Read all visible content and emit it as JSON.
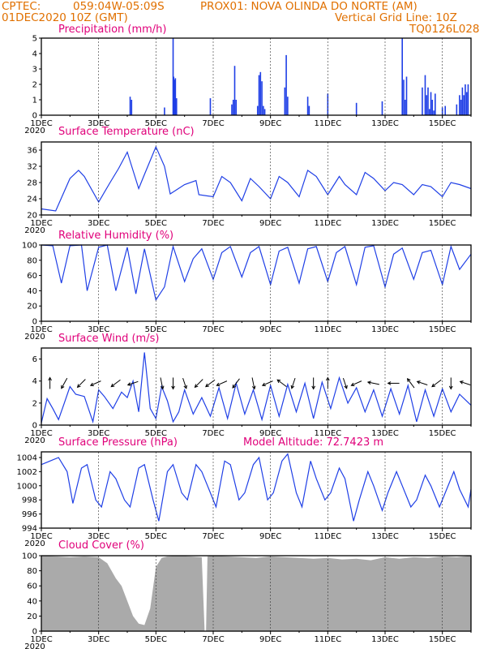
{
  "header": {
    "line1_left": "CPTEC:",
    "coords": "059:04W-05:09S",
    "location": "PROX01: NOVA OLINDA DO NORTE (AM)",
    "line2_left": "01DEC2020 10Z (GMT)",
    "grid_note": "Vertical Grid Line: 10Z",
    "code": "TQ0126L028"
  },
  "model_altitude": "Model Altitude: 72.7423 m",
  "colors": {
    "header": "#e07000",
    "title": "#e0007a",
    "line": "#1f3fe6",
    "cloud": "#aaaaaa"
  },
  "x_ticks": [
    "1DEC",
    "3DEC",
    "5DEC",
    "7DEC",
    "9DEC",
    "11DEC",
    "13DEC",
    "15DEC"
  ],
  "year_label": "2020",
  "chart_data": [
    {
      "type": "bar",
      "title": "Precipitation (mm/h)",
      "ylim": [
        0,
        5
      ],
      "yticks": [
        0,
        1,
        2,
        3,
        4,
        5
      ],
      "x_unit": "day of December 2020",
      "x": [
        4.1,
        4.15,
        5.3,
        5.6,
        5.62,
        5.65,
        5.68,
        5.72,
        6.9,
        7.65,
        7.7,
        7.75,
        7.8,
        8.55,
        8.6,
        8.65,
        8.7,
        8.75,
        8.8,
        9.5,
        9.55,
        9.6,
        10.3,
        10.35,
        11.0,
        12.0,
        12.9,
        13.6,
        13.65,
        13.7,
        13.75,
        14.3,
        14.4,
        14.45,
        14.5,
        14.55,
        14.6,
        14.65,
        14.7,
        14.75,
        15.0,
        15.1,
        15.5,
        15.6,
        15.65,
        15.7,
        15.75,
        15.8,
        15.85,
        15.9
      ],
      "values": [
        1.2,
        1.0,
        0.5,
        5.0,
        2.5,
        2.3,
        2.4,
        1.1,
        1.1,
        0.7,
        1.0,
        3.2,
        1.0,
        0.6,
        2.6,
        2.8,
        2.2,
        0.6,
        0.4,
        1.8,
        3.9,
        1.2,
        1.2,
        0.6,
        1.4,
        0.8,
        0.9,
        5.0,
        2.3,
        1.0,
        2.5,
        1.8,
        2.6,
        1.3,
        1.8,
        0.4,
        1.5,
        1.0,
        0.3,
        1.4,
        0.5,
        0.6,
        0.7,
        1.3,
        1.0,
        1.8,
        1.3,
        2.0,
        1.5,
        2.0
      ]
    },
    {
      "type": "line",
      "title": "Surface Temperature (nC)",
      "ylim": [
        20,
        38
      ],
      "yticks": [
        20,
        24,
        28,
        32,
        36
      ],
      "x": [
        1,
        1.5,
        2.0,
        2.3,
        2.5,
        3.0,
        3.4,
        3.7,
        4.0,
        4.4,
        4.6,
        5.0,
        5.3,
        5.5,
        6.0,
        6.4,
        6.5,
        7.0,
        7.3,
        7.6,
        8.0,
        8.3,
        8.6,
        9.0,
        9.3,
        9.6,
        10.0,
        10.3,
        10.6,
        11.0,
        11.4,
        11.6,
        12.0,
        12.3,
        12.6,
        13.0,
        13.3,
        13.6,
        14.0,
        14.3,
        14.6,
        15.0,
        15.3,
        15.6,
        16.0
      ],
      "values": [
        21.5,
        21.0,
        29.0,
        31.0,
        29.5,
        23.2,
        28.0,
        31.5,
        35.5,
        26.5,
        30.0,
        36.8,
        32.0,
        25.2,
        27.5,
        28.5,
        25.0,
        24.5,
        29.5,
        28.0,
        23.5,
        29.0,
        27.0,
        24.0,
        29.5,
        28.0,
        24.5,
        31.0,
        29.5,
        25.0,
        29.5,
        27.5,
        25.0,
        30.5,
        29.0,
        26.0,
        28.0,
        27.5,
        25.0,
        27.5,
        27.0,
        24.5,
        28.0,
        27.5,
        26.5
      ]
    },
    {
      "type": "line",
      "title": "Relative Humidity (%)",
      "ylim": [
        0,
        100
      ],
      "yticks": [
        0,
        20,
        40,
        60,
        80,
        100
      ],
      "x": [
        1,
        1.4,
        1.7,
        2.0,
        2.4,
        2.6,
        3.0,
        3.3,
        3.6,
        4.0,
        4.3,
        4.6,
        5.0,
        5.3,
        5.6,
        6.0,
        6.3,
        6.6,
        7.0,
        7.3,
        7.6,
        8.0,
        8.3,
        8.6,
        9.0,
        9.3,
        9.6,
        10.0,
        10.3,
        10.6,
        11.0,
        11.3,
        11.6,
        12.0,
        12.3,
        12.6,
        13.0,
        13.3,
        13.6,
        14.0,
        14.3,
        14.6,
        15.0,
        15.3,
        15.6,
        16.0
      ],
      "values": [
        100,
        99,
        50,
        99,
        100,
        40,
        97,
        100,
        40,
        97,
        36,
        95,
        28,
        45,
        98,
        52,
        82,
        95,
        55,
        90,
        98,
        58,
        90,
        98,
        48,
        92,
        97,
        50,
        95,
        98,
        52,
        90,
        98,
        48,
        97,
        99,
        45,
        88,
        96,
        55,
        90,
        93,
        48,
        98,
        68,
        88
      ]
    },
    {
      "type": "line",
      "title": "Surface Wind (m/s)",
      "ylim": [
        0,
        7
      ],
      "yticks": [
        0,
        2,
        4,
        6
      ],
      "x": [
        1,
        1.2,
        1.4,
        1.6,
        1.8,
        2.0,
        2.2,
        2.5,
        2.8,
        3.0,
        3.2,
        3.5,
        3.8,
        4.0,
        4.2,
        4.4,
        4.6,
        4.8,
        5.0,
        5.2,
        5.4,
        5.6,
        5.8,
        6.0,
        6.3,
        6.6,
        6.9,
        7.2,
        7.5,
        7.8,
        8.1,
        8.4,
        8.7,
        9.0,
        9.3,
        9.6,
        9.9,
        10.2,
        10.5,
        10.8,
        11.1,
        11.4,
        11.7,
        12.0,
        12.3,
        12.6,
        12.9,
        13.2,
        13.5,
        13.8,
        14.1,
        14.4,
        14.7,
        15.0,
        15.3,
        15.6,
        16.0
      ],
      "values": [
        0.2,
        2.4,
        1.5,
        0.5,
        2.0,
        3.5,
        2.8,
        2.6,
        0.3,
        3.2,
        2.6,
        1.5,
        3.0,
        2.5,
        4.0,
        1.2,
        6.6,
        1.5,
        0.6,
        3.5,
        2.2,
        0.3,
        1.2,
        3.2,
        1.0,
        2.5,
        0.8,
        3.4,
        0.6,
        3.8,
        1.0,
        3.2,
        0.5,
        3.6,
        0.8,
        3.7,
        1.2,
        3.8,
        0.6,
        3.9,
        1.5,
        4.3,
        2.0,
        3.4,
        1.2,
        3.2,
        0.8,
        3.3,
        1.0,
        3.6,
        0.3,
        3.2,
        0.8,
        3.3,
        1.2,
        2.8,
        1.8
      ],
      "arrows": [
        {
          "x": 1.3,
          "dir": [
            0.0,
            1.0
          ]
        },
        {
          "x": 1.8,
          "dir": [
            -0.5,
            -0.9
          ]
        },
        {
          "x": 2.4,
          "dir": [
            -0.7,
            -0.7
          ]
        },
        {
          "x": 2.9,
          "dir": [
            -0.9,
            -0.4
          ]
        },
        {
          "x": 3.6,
          "dir": [
            -0.8,
            -0.6
          ]
        },
        {
          "x": 4.2,
          "dir": [
            -0.9,
            -0.3
          ]
        },
        {
          "x": 5.2,
          "dir": [
            0.2,
            -1.0
          ]
        },
        {
          "x": 5.6,
          "dir": [
            0.0,
            -1.0
          ]
        },
        {
          "x": 6.0,
          "dir": [
            0.3,
            -0.9
          ]
        },
        {
          "x": 6.5,
          "dir": [
            -0.7,
            -0.7
          ]
        },
        {
          "x": 6.9,
          "dir": [
            -0.8,
            -0.6
          ]
        },
        {
          "x": 7.3,
          "dir": [
            -0.9,
            -0.4
          ]
        },
        {
          "x": 7.8,
          "dir": [
            -0.6,
            -0.8
          ]
        },
        {
          "x": 8.4,
          "dir": [
            0.2,
            -1.0
          ]
        },
        {
          "x": 8.9,
          "dir": [
            -0.9,
            -0.4
          ]
        },
        {
          "x": 9.4,
          "dir": [
            -0.8,
            0.6
          ]
        },
        {
          "x": 9.8,
          "dir": [
            -0.3,
            -0.9
          ]
        },
        {
          "x": 10.5,
          "dir": [
            0.0,
            -1.0
          ]
        },
        {
          "x": 11.0,
          "dir": [
            0.0,
            1.0
          ]
        },
        {
          "x": 11.6,
          "dir": [
            0.3,
            -0.9
          ]
        },
        {
          "x": 12.0,
          "dir": [
            -0.9,
            -0.4
          ]
        },
        {
          "x": 12.6,
          "dir": [
            -1.0,
            0.2
          ]
        },
        {
          "x": 13.3,
          "dir": [
            -1.0,
            0.0
          ]
        },
        {
          "x": 13.9,
          "dir": [
            -0.6,
            0.8
          ]
        },
        {
          "x": 14.3,
          "dir": [
            -0.9,
            0.3
          ]
        },
        {
          "x": 14.8,
          "dir": [
            -0.8,
            -0.6
          ]
        },
        {
          "x": 15.3,
          "dir": [
            0.0,
            -1.0
          ]
        },
        {
          "x": 15.8,
          "dir": [
            -0.9,
            0.3
          ]
        }
      ]
    },
    {
      "type": "line",
      "title": "Surface Pressure (hPa)",
      "ylim": [
        994,
        1004.8
      ],
      "yticks": [
        994,
        996,
        998,
        1000,
        1002,
        1004
      ],
      "x": [
        1,
        1.3,
        1.6,
        1.9,
        2.1,
        2.4,
        2.6,
        2.9,
        3.1,
        3.4,
        3.6,
        3.9,
        4.1,
        4.4,
        4.6,
        4.9,
        5.1,
        5.4,
        5.6,
        5.9,
        6.1,
        6.4,
        6.6,
        6.9,
        7.1,
        7.4,
        7.6,
        7.9,
        8.1,
        8.4,
        8.6,
        8.9,
        9.1,
        9.4,
        9.6,
        9.9,
        10.1,
        10.4,
        10.6,
        10.9,
        11.1,
        11.4,
        11.6,
        11.9,
        12.1,
        12.4,
        12.6,
        12.9,
        13.1,
        13.4,
        13.6,
        13.9,
        14.1,
        14.4,
        14.6,
        14.9,
        15.1,
        15.4,
        15.6,
        15.9,
        16.0
      ],
      "values": [
        1003.0,
        1003.5,
        1004.0,
        1002.0,
        997.5,
        1002.5,
        1003.0,
        998.0,
        997.0,
        1002.0,
        1001.0,
        998.0,
        997.0,
        1002.5,
        1003.0,
        998.0,
        995.0,
        1002.0,
        1003.0,
        999.0,
        998.0,
        1003.0,
        1002.0,
        999.0,
        997.0,
        1003.5,
        1003.0,
        998.0,
        999.0,
        1003.0,
        1004.0,
        998.0,
        999.0,
        1003.5,
        1004.5,
        999.0,
        997.0,
        1003.5,
        1001.0,
        998.0,
        999.0,
        1002.5,
        1001.0,
        995.0,
        998.0,
        1002.0,
        1000.0,
        996.5,
        999.0,
        1002.0,
        1000.0,
        997.0,
        998.0,
        1001.5,
        1000.0,
        997.0,
        999.0,
        1002.0,
        999.5,
        997.0,
        999.5
      ]
    },
    {
      "type": "area",
      "title": "Cloud Cover (%)",
      "ylim": [
        0,
        100
      ],
      "yticks": [
        0,
        20,
        40,
        60,
        80,
        100
      ],
      "x": [
        1,
        1.5,
        2.0,
        2.5,
        3.0,
        3.3,
        3.6,
        3.8,
        4.0,
        4.2,
        4.4,
        4.6,
        4.8,
        5.0,
        5.2,
        5.4,
        5.8,
        6.2,
        6.6,
        6.7,
        6.75,
        6.8,
        7.0,
        7.5,
        8.0,
        8.5,
        9.0,
        9.5,
        10.0,
        10.5,
        11.0,
        11.5,
        12.0,
        12.5,
        13.0,
        13.5,
        14.0,
        14.5,
        15.0,
        15.5,
        16.0
      ],
      "values": [
        100,
        99,
        98,
        99,
        98,
        90,
        70,
        60,
        40,
        20,
        10,
        8,
        30,
        85,
        97,
        99,
        100,
        99,
        98,
        0,
        0,
        99,
        100,
        99,
        98,
        97,
        99,
        98,
        97,
        96,
        97,
        95,
        96,
        94,
        98,
        96,
        98,
        97,
        99,
        98,
        100
      ]
    }
  ]
}
